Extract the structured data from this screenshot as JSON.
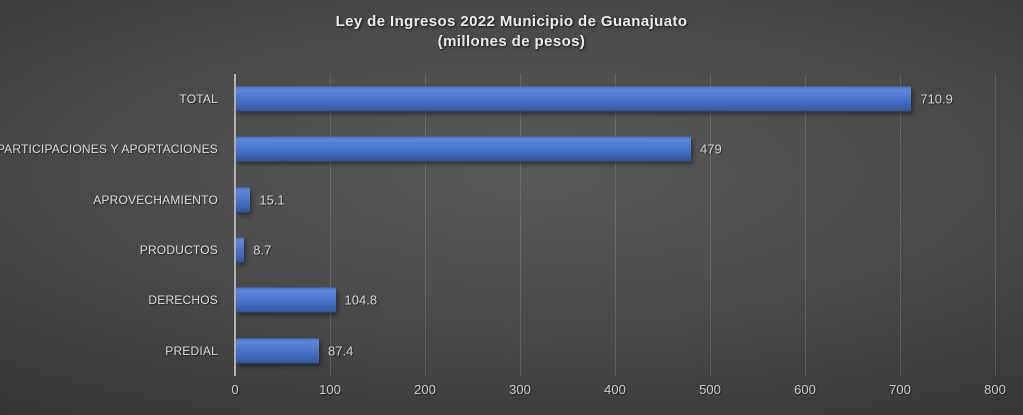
{
  "title": {
    "line1": "Ley de Ingresos 2022 Municipio de Guanajuato",
    "line2": "(millones de pesos)"
  },
  "chart_data": {
    "type": "bar",
    "orientation": "horizontal",
    "title": "Ley de Ingresos 2022 Municipio de Guanajuato (millones de pesos)",
    "categories": [
      "TOTAL",
      "PARTICIPACIONES Y APORTACIONES",
      "APROVECHAMIENTO",
      "PRODUCTOS",
      "DERECHOS",
      "PREDIAL"
    ],
    "values": [
      710.9,
      479,
      15.1,
      8.7,
      104.8,
      87.4
    ],
    "value_labels": [
      "710.9",
      "479",
      "15.1",
      "8.7",
      "104.8",
      "87.4"
    ],
    "xlabel": "",
    "ylabel": "",
    "xlim": [
      0,
      800
    ],
    "xticks": [
      0,
      100,
      200,
      300,
      400,
      500,
      600,
      700,
      800
    ],
    "grid": true,
    "legend": false,
    "bar_color": "#4472C4",
    "background_color": "#3d3d3d",
    "text_color": "#d9d9d9"
  }
}
